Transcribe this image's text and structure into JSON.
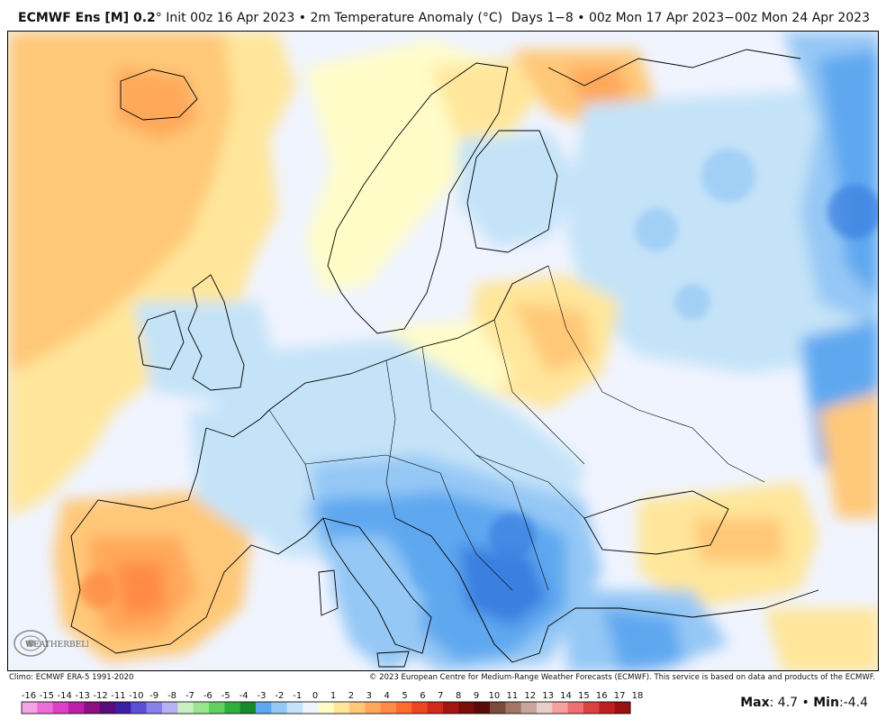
{
  "header": {
    "model": "ECMWF Ens [M] 0.2",
    "degree_symbol": "°",
    "init": "Init 00z 16 Apr 2023",
    "bullet": "•",
    "variable": "2m Temperature Anomaly (°C)",
    "range": "Days 1−8 • 00z Mon 17 Apr 2023−00z Mon 24 Apr 2023"
  },
  "footer": {
    "climo": "Climo: ECMWF ERA-5 1991-2020",
    "copyright": "© 2023 European Centre for Medium-Range Weather Forecasts (ECMWF). This service is based on data and products of the ECMWF."
  },
  "stats": {
    "max_label": "Max",
    "max_value": ": 4.7",
    "separator": " • ",
    "min_label": "Min",
    "min_value": ":-4.4"
  },
  "logo": {
    "text": "WEATHERBELL"
  },
  "colorbar": {
    "labels": [
      "-16",
      "-15",
      "-14",
      "-13",
      "-12",
      "-11",
      "-10",
      "-9",
      "-8",
      "-7",
      "-6",
      "-5",
      "-4",
      "-3",
      "-2",
      "-1",
      "0",
      "1",
      "2",
      "3",
      "4",
      "5",
      "6",
      "7",
      "8",
      "9",
      "10",
      "11",
      "12",
      "13",
      "14",
      "15",
      "16",
      "17",
      "18"
    ],
    "colors": [
      "#f5a3e6",
      "#ec6fd9",
      "#dd3fc8",
      "#bf1fa8",
      "#8e0f80",
      "#5a0d78",
      "#3b1fa3",
      "#5a4fd6",
      "#8a80ea",
      "#b7b1f3",
      "#c9f0c3",
      "#9ae58f",
      "#5fd15c",
      "#2eb13c",
      "#178a2a",
      "#5fa8f0",
      "#95c8f5",
      "#c4e3f8",
      "#f0f4ff",
      "#fffcc8",
      "#ffe69a",
      "#ffc878",
      "#ffa85a",
      "#ff8a44",
      "#ff6a30",
      "#f04522",
      "#d02a18",
      "#a31510",
      "#7a0c0a",
      "#5a0a08",
      "#7a4a3a",
      "#a47468",
      "#c9a59c",
      "#e8cfc9",
      "#f6a0a0",
      "#ee7070",
      "#dc4040",
      "#c01f1f",
      "#9a1010"
    ]
  }
}
